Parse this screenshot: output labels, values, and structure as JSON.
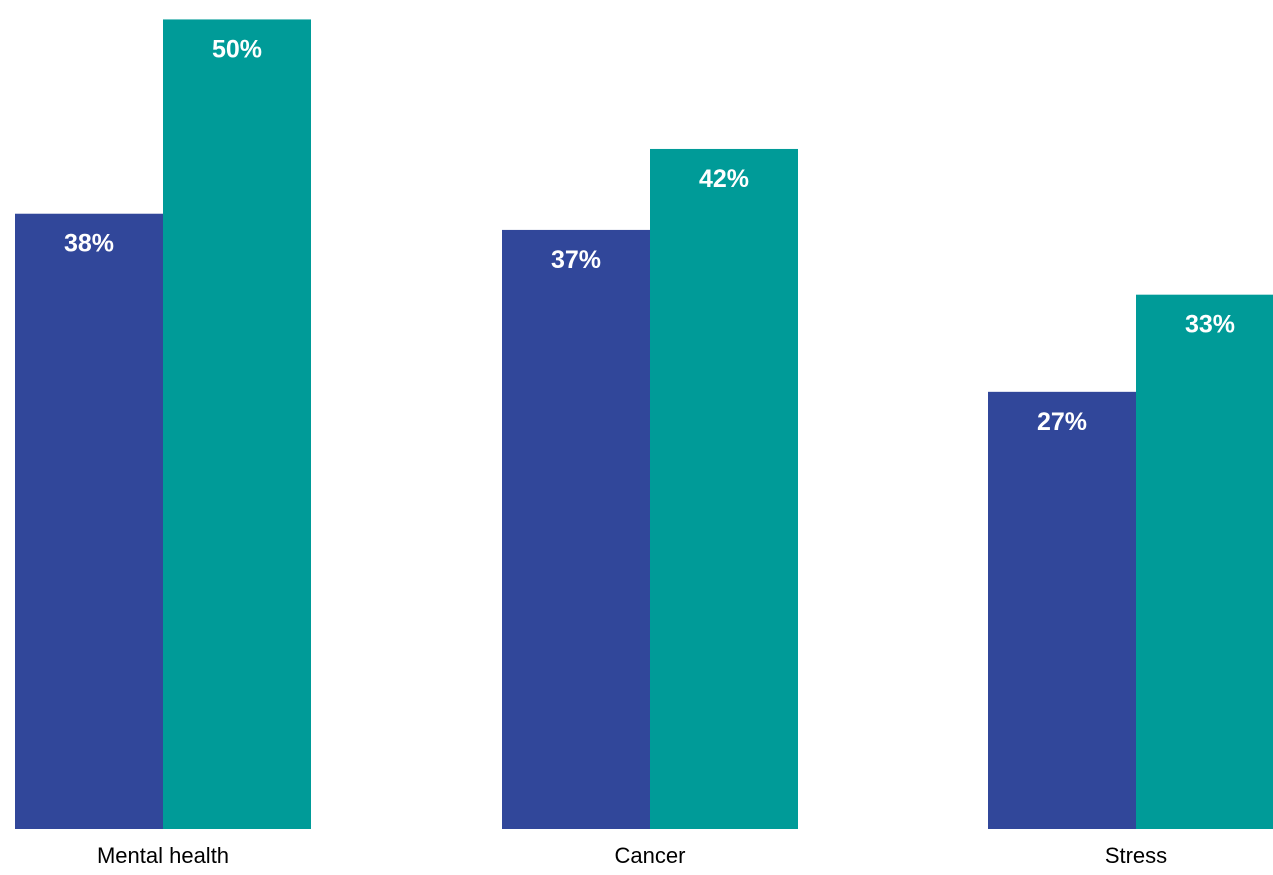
{
  "chart_data": {
    "type": "bar",
    "categories": [
      "Mental health",
      "Cancer",
      "Stress"
    ],
    "series": [
      {
        "values": [
          38,
          37,
          27
        ],
        "labels": [
          "38%",
          "37%",
          "27%"
        ],
        "color": "#31479a"
      },
      {
        "values": [
          50,
          42,
          33
        ],
        "labels": [
          "50%",
          "42%",
          "33%"
        ],
        "color": "#009b98"
      }
    ],
    "ylim": [
      0,
      51.2
    ],
    "grid": false,
    "legend": "none"
  }
}
